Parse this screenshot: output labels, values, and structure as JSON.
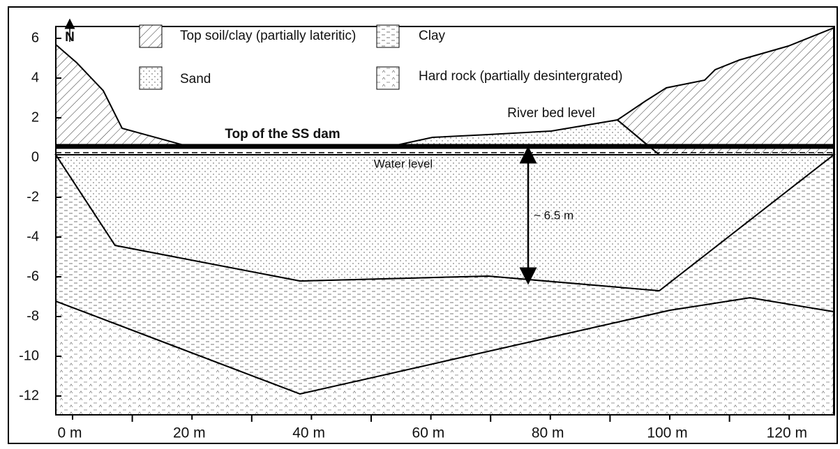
{
  "north": "N",
  "legend": [
    {
      "label": "Top soil/clay (partially lateritic)"
    },
    {
      "label": "Clay"
    },
    {
      "label": "Sand"
    },
    {
      "label": "Hard rock (partially desintergrated)"
    }
  ],
  "annotations": {
    "dam": "Top of the SS dam",
    "water": "Water level",
    "river": "River bed level",
    "depth": "~ 6.5 m"
  },
  "y_axis": {
    "ticks": [
      6,
      4,
      2,
      0,
      -2,
      -4,
      -6,
      -8,
      -10,
      -12
    ]
  },
  "x_axis": {
    "ticks": [
      "0 m",
      "20 m",
      "40 m",
      "60 m",
      "80 m",
      "100 m",
      "120 m"
    ]
  }
}
